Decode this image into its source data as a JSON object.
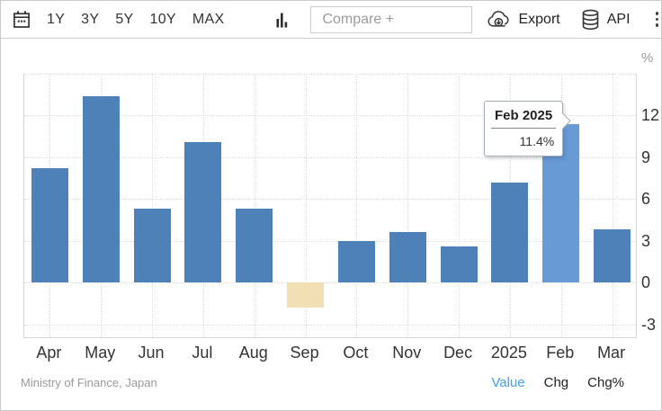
{
  "toolbar": {
    "ranges": [
      "1Y",
      "3Y",
      "5Y",
      "10Y",
      "MAX"
    ],
    "compare_placeholder": "Compare +",
    "export_label": "Export",
    "api_label": "API",
    "icons": [
      "calendar-icon",
      "bar-chart-type-icon",
      "cloud-download-icon",
      "database-icon",
      "kebab-menu-icon"
    ]
  },
  "chart_data": {
    "type": "bar",
    "categories": [
      "Apr",
      "May",
      "Jun",
      "Jul",
      "Aug",
      "Sep",
      "Oct",
      "Nov",
      "Dec",
      "2025",
      "Feb",
      "Mar"
    ],
    "values": [
      8.2,
      13.4,
      5.3,
      10.1,
      5.3,
      -1.8,
      3.0,
      3.6,
      2.6,
      7.2,
      11.4,
      3.8
    ],
    "unit": "%",
    "y_ticks": [
      12,
      9,
      6,
      3,
      0,
      -3
    ],
    "grid_ticks": [
      15,
      12,
      9,
      6,
      3,
      0,
      -3
    ],
    "ylim": [
      -4,
      15
    ],
    "grid": true,
    "legend_position": "none",
    "highlight_index": 10,
    "colors": {
      "bar": "#4f81b9",
      "highlight": "#689ad5",
      "negative": "#f2dfb3",
      "gridline": "#dddddd"
    }
  },
  "tooltip": {
    "title": "Feb 2025",
    "value": "11.4%"
  },
  "y_axis": {
    "unit_label": "%"
  },
  "footer": {
    "source": "Ministry of Finance, Japan",
    "links": [
      "Value",
      "Chg",
      "Chg%"
    ],
    "active_link": "Value",
    "active_color": "#3f9ef8"
  }
}
